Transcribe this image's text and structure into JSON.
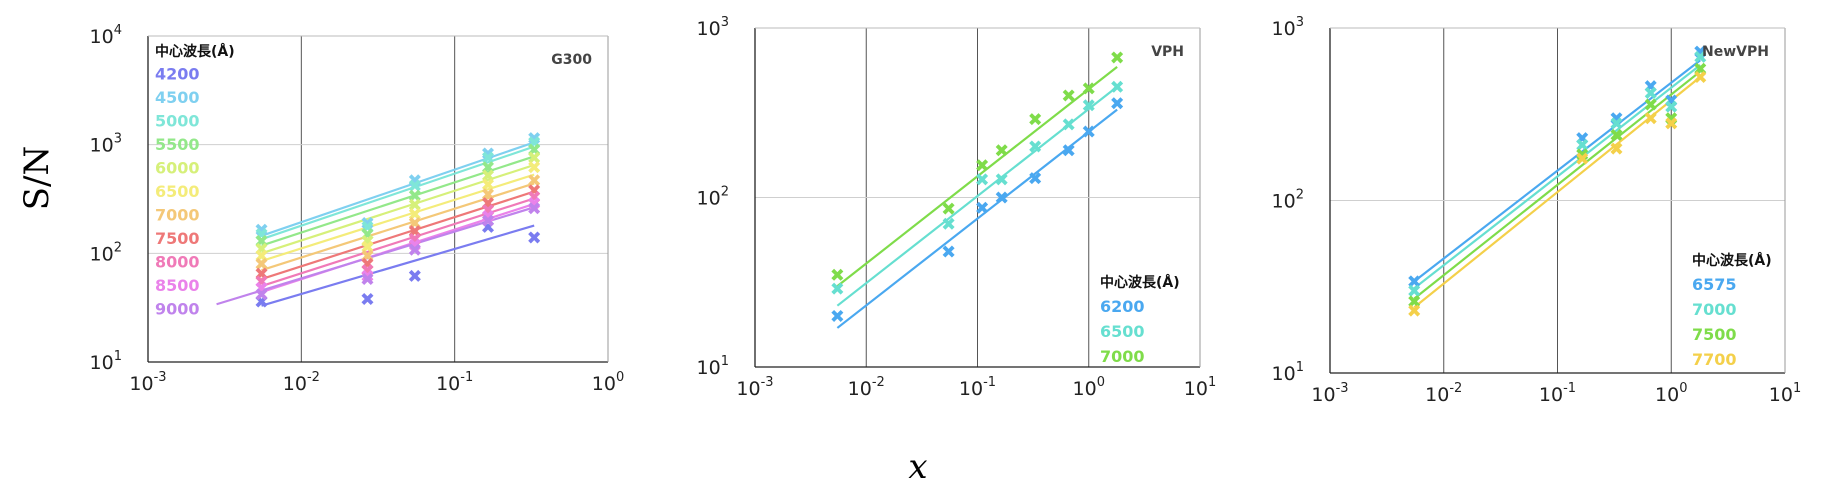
{
  "figure": {
    "ylabel": "S/N",
    "xlabel": "x"
  },
  "chart_data": [
    {
      "type": "scatter",
      "title": "G300",
      "xscale": "log",
      "yscale": "log",
      "xlim": [
        0.001,
        1
      ],
      "ylim": [
        10,
        10000
      ],
      "xticks": [
        "-3",
        "-2",
        "-1",
        "0"
      ],
      "yticks": [
        "1",
        "2",
        "3",
        "4"
      ],
      "grid": "major",
      "legend_title": "中心波長(Å)",
      "legend_position": "top-left",
      "series": [
        {
          "name": "4200",
          "color": "#7a7cf0",
          "x": [
            0.0055,
            0.027,
            0.055,
            0.165,
            0.33
          ],
          "y": [
            36,
            38,
            62,
            175,
            140
          ],
          "fit": [
            [
              0.0055,
              33
            ],
            [
              0.33,
              180
            ]
          ]
        },
        {
          "name": "4500",
          "color": "#7fd0f0",
          "x": [
            0.0055,
            0.027,
            0.055,
            0.165,
            0.33
          ],
          "y": [
            165,
            190,
            470,
            830,
            1150
          ],
          "fit": [
            [
              0.0055,
              145
            ],
            [
              0.33,
              1050
            ]
          ]
        },
        {
          "name": "5000",
          "color": "#7fe6d8",
          "x": [
            0.0055,
            0.027,
            0.055,
            0.165,
            0.33
          ],
          "y": [
            150,
            175,
            420,
            760,
            1050
          ],
          "fit": [
            [
              0.0055,
              135
            ],
            [
              0.33,
              960
            ]
          ]
        },
        {
          "name": "5500",
          "color": "#93e88a",
          "x": [
            0.0055,
            0.027,
            0.055,
            0.165,
            0.33
          ],
          "y": [
            130,
            150,
            340,
            620,
            900
          ],
          "fit": [
            [
              0.0055,
              118
            ],
            [
              0.33,
              780
            ]
          ]
        },
        {
          "name": "6000",
          "color": "#d6f07a",
          "x": [
            0.0055,
            0.027,
            0.055,
            0.165,
            0.33
          ],
          "y": [
            110,
            130,
            280,
            520,
            760
          ],
          "fit": [
            [
              0.0055,
              100
            ],
            [
              0.33,
              650
            ]
          ]
        },
        {
          "name": "6500",
          "color": "#f4ec7a",
          "x": [
            0.0055,
            0.027,
            0.055,
            0.165,
            0.33
          ],
          "y": [
            95,
            115,
            230,
            430,
            620
          ],
          "fit": [
            [
              0.0055,
              85
            ],
            [
              0.33,
              530
            ]
          ]
        },
        {
          "name": "7000",
          "color": "#f4c878",
          "x": [
            0.0055,
            0.027,
            0.055,
            0.165,
            0.33
          ],
          "y": [
            80,
            95,
            190,
            350,
            470
          ],
          "fit": [
            [
              0.0055,
              70
            ],
            [
              0.33,
              440
            ]
          ]
        },
        {
          "name": "7500",
          "color": "#ee7878",
          "x": [
            0.0055,
            0.027,
            0.055,
            0.165,
            0.33
          ],
          "y": [
            65,
            80,
            160,
            290,
            380
          ],
          "fit": [
            [
              0.0055,
              58
            ],
            [
              0.33,
              370
            ]
          ]
        },
        {
          "name": "8000",
          "color": "#f07ab8",
          "x": [
            0.0055,
            0.027,
            0.055,
            0.165,
            0.33
          ],
          "y": [
            55,
            70,
            135,
            250,
            330
          ],
          "fit": [
            [
              0.0055,
              50
            ],
            [
              0.33,
              320
            ]
          ]
        },
        {
          "name": "8500",
          "color": "#ea82ea",
          "x": [
            0.0055,
            0.027,
            0.055,
            0.165,
            0.33
          ],
          "y": [
            48,
            62,
            120,
            220,
            290
          ],
          "fit": [
            [
              0.0055,
              44
            ],
            [
              0.33,
              285
            ]
          ]
        },
        {
          "name": "9000",
          "color": "#c083ec",
          "x": [
            0.0055,
            0.027,
            0.055,
            0.165,
            0.33
          ],
          "y": [
            42,
            58,
            108,
            200,
            260
          ],
          "fit": [
            [
              0.0028,
              34
            ],
            [
              0.33,
              265
            ]
          ]
        }
      ]
    },
    {
      "type": "scatter",
      "title": "VPH",
      "xscale": "log",
      "yscale": "log",
      "xlim": [
        0.001,
        10
      ],
      "ylim": [
        10,
        1000
      ],
      "xticks": [
        "-3",
        "-2",
        "-1",
        "0",
        "1"
      ],
      "yticks": [
        "1",
        "2",
        "3"
      ],
      "grid": "major",
      "legend_title": "中心波長(Å)",
      "legend_position": "bottom-right",
      "series": [
        {
          "name": "6200",
          "color": "#4aa8f0",
          "x": [
            0.0055,
            0.055,
            0.11,
            0.165,
            0.33,
            0.66,
            1.0,
            1.8
          ],
          "y": [
            20,
            48,
            87,
            100,
            130,
            190,
            245,
            360
          ],
          "fit": [
            [
              0.0055,
              17
            ],
            [
              1.8,
              330
            ]
          ]
        },
        {
          "name": "6500",
          "color": "#66dfd0",
          "x": [
            0.0055,
            0.055,
            0.11,
            0.165,
            0.33,
            0.66,
            1.0,
            1.8
          ],
          "y": [
            29,
            70,
            128,
            128,
            200,
            270,
            350,
            450
          ],
          "fit": [
            [
              0.0055,
              23
            ],
            [
              1.8,
              450
            ]
          ]
        },
        {
          "name": "7000",
          "color": "#7fdc4a",
          "x": [
            0.0055,
            0.055,
            0.11,
            0.165,
            0.33,
            0.66,
            1.0,
            1.8
          ],
          "y": [
            35,
            86,
            155,
            190,
            290,
            400,
            440,
            670
          ],
          "fit": [
            [
              0.0055,
              30
            ],
            [
              1.8,
              590
            ]
          ]
        }
      ]
    },
    {
      "type": "scatter",
      "title": "NewVPH",
      "xscale": "log",
      "yscale": "log",
      "xlim": [
        0.001,
        10
      ],
      "ylim": [
        10,
        1000
      ],
      "xticks": [
        "-3",
        "-2",
        "-1",
        "0",
        "1"
      ],
      "yticks": [
        "1",
        "2",
        "3"
      ],
      "grid": "major",
      "legend_title": "中心波長(Å)",
      "legend_position": "bottom-right",
      "series": [
        {
          "name": "6575",
          "color": "#4aa8f0",
          "x": [
            0.0055,
            0.165,
            0.33,
            0.66,
            1.0,
            1.8
          ],
          "y": [
            34,
            230,
            300,
            460,
            380,
            730
          ],
          "fit": [
            [
              0.0055,
              34
            ],
            [
              1.8,
              650
            ]
          ]
        },
        {
          "name": "7000",
          "color": "#66dfd0",
          "x": [
            0.0055,
            0.165,
            0.33,
            0.66,
            1.0,
            1.8
          ],
          "y": [
            30,
            210,
            280,
            420,
            350,
            680
          ],
          "fit": [
            [
              0.0055,
              31
            ],
            [
              1.8,
              610
            ]
          ]
        },
        {
          "name": "7500",
          "color": "#7fdc4a",
          "x": [
            0.0055,
            0.165,
            0.33,
            0.66,
            1.0,
            1.8
          ],
          "y": [
            26,
            185,
            240,
            360,
            300,
            580
          ],
          "fit": [
            [
              0.0055,
              27
            ],
            [
              1.8,
              560
            ]
          ]
        },
        {
          "name": "7700",
          "color": "#f4d04a",
          "x": [
            0.0055,
            0.165,
            0.33,
            0.66,
            1.0,
            1.8
          ],
          "y": [
            23,
            175,
            200,
            300,
            280,
            520
          ],
          "fit": [
            [
              0.0055,
              24
            ],
            [
              1.8,
              520
            ]
          ]
        }
      ]
    }
  ]
}
